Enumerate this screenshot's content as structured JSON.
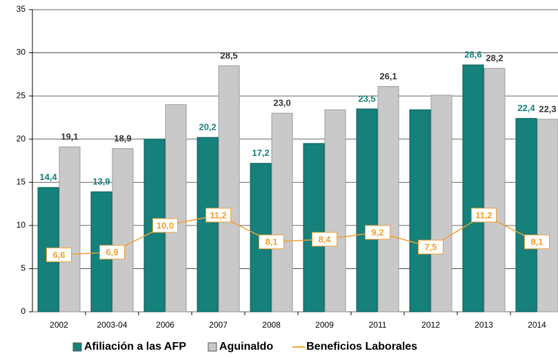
{
  "chart_data": {
    "type": "bar-line",
    "categories": [
      "2002",
      "2003-04",
      "2006",
      "2007",
      "2008",
      "2009",
      "2011",
      "2012",
      "2013",
      "2014"
    ],
    "series": [
      {
        "name": "Afiliación a las AFP",
        "type": "bar",
        "color": "#16807b",
        "values": [
          14.4,
          13.9,
          20.0,
          20.2,
          17.2,
          19.5,
          23.5,
          23.4,
          28.6,
          22.4
        ],
        "value_labels": [
          "14,4",
          "13,9",
          null,
          "20,2",
          "17,2",
          null,
          "23,5",
          null,
          "28,6",
          "22,4"
        ]
      },
      {
        "name": "Aguinaldo",
        "type": "bar",
        "color": "#c9c9c9",
        "values": [
          19.1,
          18.9,
          24.0,
          28.5,
          23.0,
          23.4,
          26.1,
          25.1,
          28.2,
          22.3
        ],
        "value_labels": [
          "19,1",
          "18,9",
          null,
          "28,5",
          "23,0",
          null,
          "26,1",
          null,
          "28,2",
          "22,3"
        ]
      },
      {
        "name": "Beneficios Laborales",
        "type": "line",
        "color": "#f0a030",
        "values": [
          6.6,
          6.9,
          10.0,
          11.2,
          8.1,
          8.4,
          9.2,
          7.5,
          11.2,
          8.1
        ],
        "value_labels": [
          "6,6",
          "6,9",
          "10,0",
          "11,2",
          "8,1",
          "8,4",
          "9,2",
          "7,5",
          "11,2",
          "8,1"
        ]
      }
    ],
    "ylim": [
      0,
      35
    ],
    "yticks": [
      0,
      5,
      10,
      15,
      20,
      25,
      30,
      35
    ],
    "grid": true,
    "legend": "bottom"
  }
}
